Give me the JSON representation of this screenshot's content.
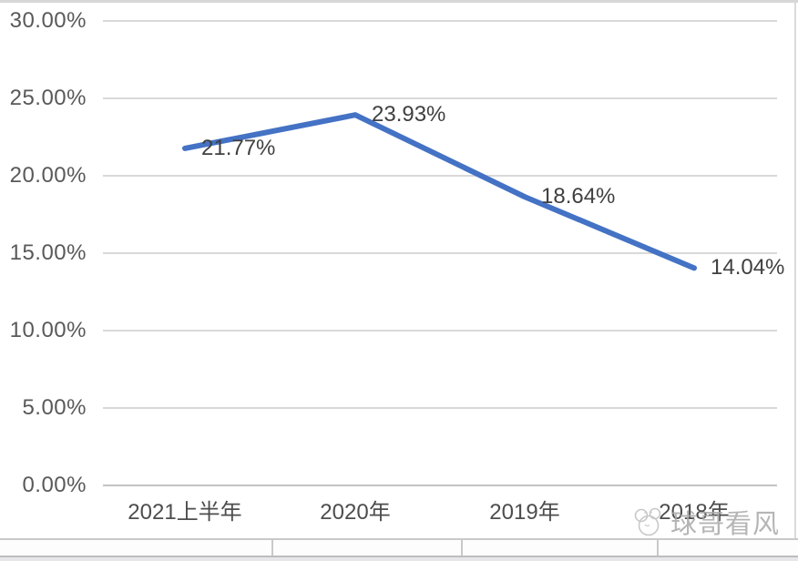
{
  "chart_data": {
    "type": "line",
    "categories": [
      "2021上半年",
      "2020年",
      "2019年",
      "2018年"
    ],
    "values": [
      21.77,
      23.93,
      18.64,
      14.04
    ],
    "data_labels": [
      "21.77%",
      "23.93%",
      "18.64%",
      "14.04%"
    ],
    "series": [
      {
        "name": "",
        "values": [
          21.77,
          23.93,
          18.64,
          14.04
        ]
      }
    ],
    "title": "",
    "xlabel": "",
    "ylabel": "",
    "ylim": [
      0,
      30
    ],
    "yticks": {
      "labels": [
        "30.00%",
        "25.00%",
        "20.00%",
        "15.00%",
        "10.00%",
        "5.00%",
        "0.00%"
      ],
      "values": [
        30,
        25,
        20,
        15,
        10,
        5,
        0
      ]
    },
    "grid": "horizontal",
    "legend_position": "none",
    "line_color": "#4472C4",
    "gridline_color": "#d9d9d9",
    "axis_line_color": "#c6c6c6",
    "axis_text_color": "#595959",
    "data_label_color": "#404040"
  },
  "watermark": {
    "text": "球哥看风",
    "logo": "panda-face-icon",
    "color": "#a9a9a9"
  }
}
